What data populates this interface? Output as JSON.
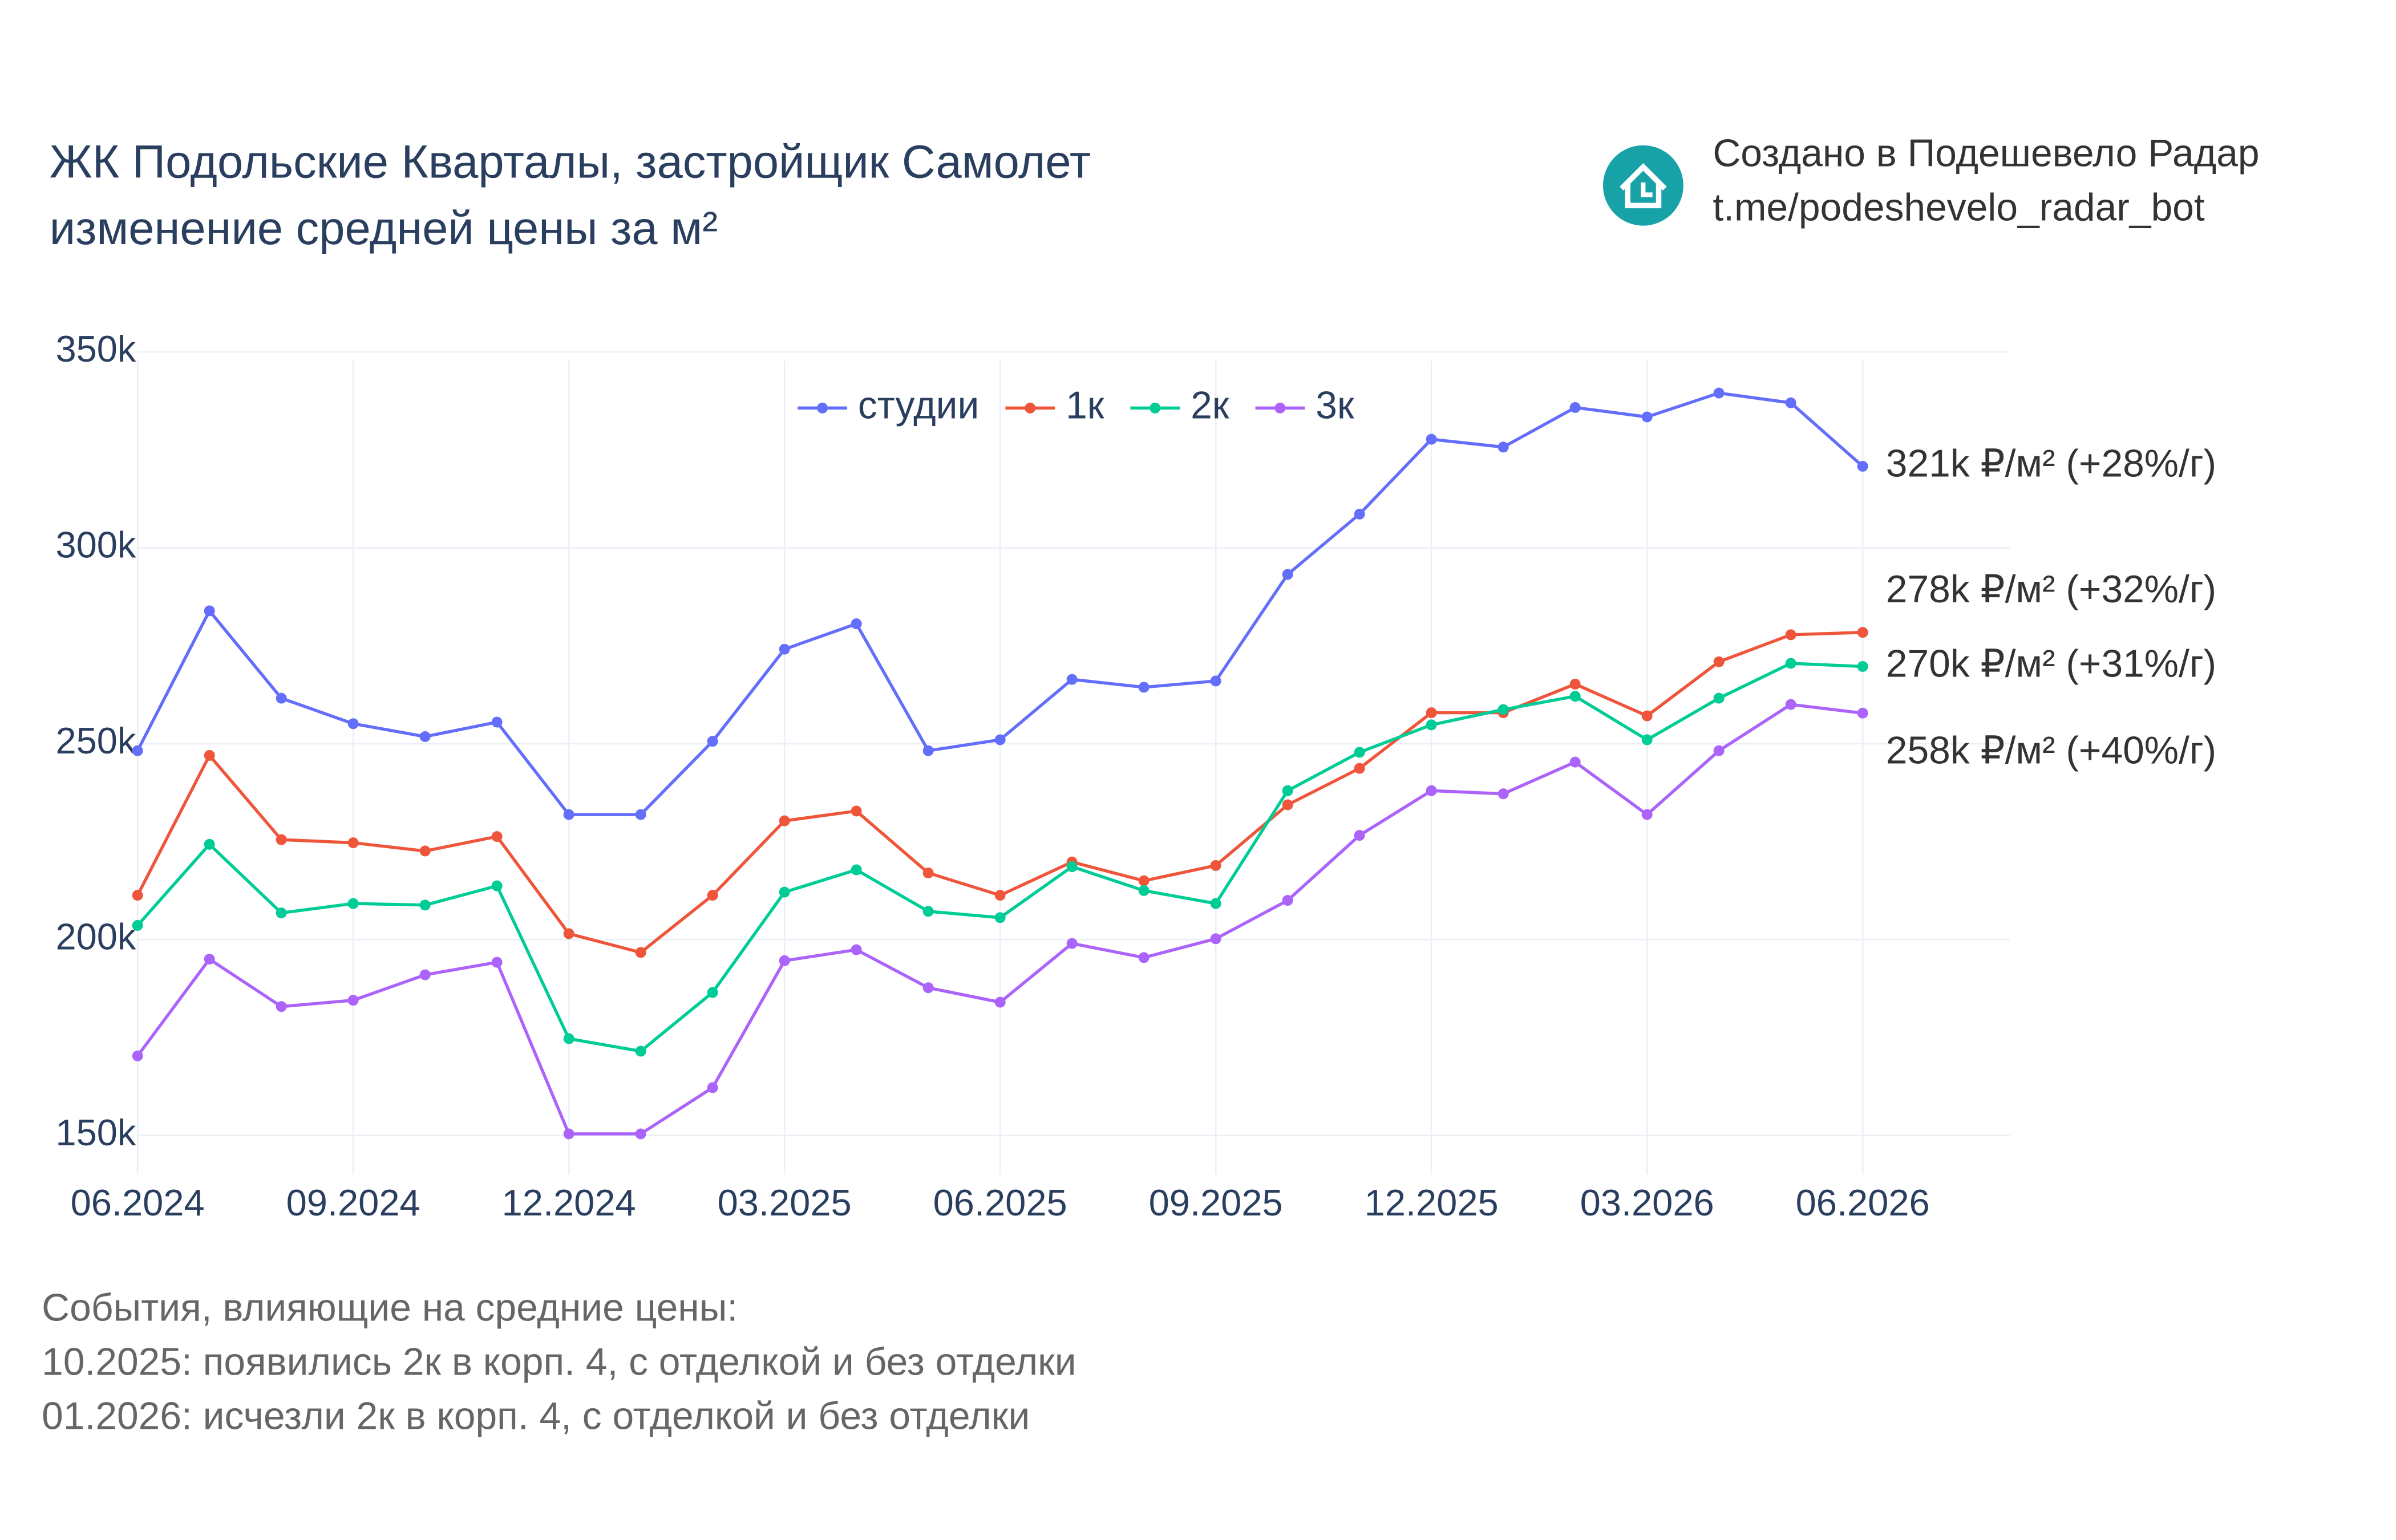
{
  "chart_data": {
    "type": "line",
    "title": "ЖК Подольские Кварталы, застройщик Самолет",
    "subtitle": "изменение средней цены за м²",
    "credit": [
      "Создано в Подешевело Радар",
      "t.me/podeshevelo_radar_bot"
    ],
    "x": [
      "06.2024",
      "07.2024",
      "08.2024",
      "09.2024",
      "10.2024",
      "11.2024",
      "12.2024",
      "01.2025",
      "02.2025",
      "03.2025",
      "04.2025",
      "05.2025",
      "06.2025",
      "07.2025",
      "08.2025",
      "09.2025",
      "10.2025",
      "11.2025",
      "12.2025",
      "01.2026",
      "02.2026",
      "03.2026",
      "04.2026",
      "05.2026",
      "06.2026"
    ],
    "xticks": [
      "06.2024",
      "09.2024",
      "12.2024",
      "03.2025",
      "06.2025",
      "09.2025",
      "12.2025",
      "03.2026",
      "06.2026"
    ],
    "ylim": [
      140000,
      355000
    ],
    "yticks": [
      {
        "value": 150000,
        "label": "150k"
      },
      {
        "value": 200000,
        "label": "200k"
      },
      {
        "value": 250000,
        "label": "250k"
      },
      {
        "value": 300000,
        "label": "300k"
      },
      {
        "value": 350000,
        "label": "350k"
      }
    ],
    "grid": true,
    "legend": "top",
    "series": [
      {
        "name": "студии",
        "color": "#636efa",
        "values": [
          248200,
          283900,
          261600,
          255100,
          251800,
          255500,
          231900,
          231900,
          250600,
          274100,
          280600,
          248200,
          251000,
          266400,
          264400,
          266000,
          293200,
          308600,
          327700,
          325700,
          335800,
          333400,
          339500,
          337000,
          320800
        ]
      },
      {
        "name": "1к",
        "color": "#ef553b",
        "values": [
          211300,
          247000,
          225500,
          224700,
          222600,
          226300,
          201500,
          196700,
          211300,
          230300,
          232800,
          217000,
          211300,
          219800,
          215000,
          218900,
          234400,
          243700,
          257900,
          257900,
          265200,
          257100,
          270900,
          277800,
          278400
        ]
      },
      {
        "name": "2к",
        "color": "#00cc96",
        "values": [
          203600,
          224300,
          206800,
          209200,
          208800,
          213700,
          174700,
          171500,
          186500,
          212100,
          217800,
          207200,
          205600,
          218600,
          212500,
          209200,
          238000,
          247800,
          254800,
          258700,
          262100,
          251000,
          261600,
          270500,
          269700
        ]
      },
      {
        "name": "3к",
        "color": "#ab63fa",
        "values": [
          170300,
          195000,
          182900,
          184500,
          191000,
          194200,
          150400,
          150400,
          162200,
          194600,
          197400,
          187700,
          184000,
          199000,
          195400,
          200200,
          210000,
          226600,
          238000,
          237200,
          245300,
          231900,
          248200,
          260000,
          257800
        ]
      }
    ],
    "annotations": [
      "321k ₽/м² (+28%/г)",
      "278k ₽/м² (+32%/г)",
      "270k ₽/м² (+31%/г)",
      "258k ₽/м² (+40%/г)"
    ],
    "notes": [
      "События, влияющие на средние цены:",
      "10.2025: появились 2к в корп. 4, с отделкой и без отделки",
      "01.2026: исчезли 2к в корп. 4, с отделкой и без отделки"
    ]
  }
}
